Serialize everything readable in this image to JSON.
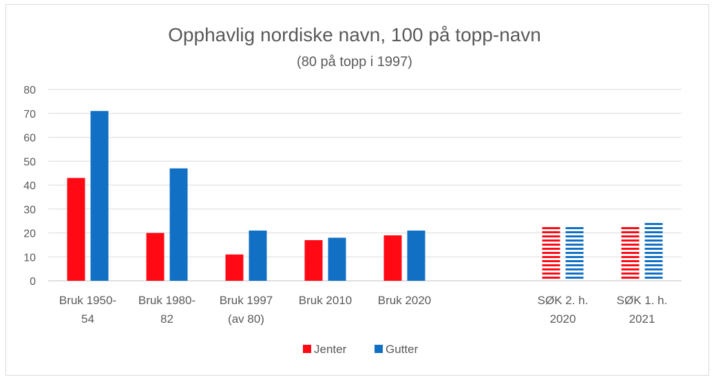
{
  "chart_data": {
    "type": "bar",
    "title": "Opphavlig nordiske navn, 100 på topp-navn",
    "subtitle": "(80 på topp i 1997)",
    "categories": [
      [
        "Bruk 1950-",
        "54"
      ],
      [
        "Bruk 1980-",
        "82"
      ],
      [
        "Bruk 1997",
        "(av 80)"
      ],
      [
        "Bruk 2010"
      ],
      [
        "Bruk 2020"
      ],
      [],
      [
        "SØK 2. h.",
        "2020"
      ],
      [
        "SØK 1. h.",
        "2021"
      ]
    ],
    "series": [
      {
        "name": "Jenter",
        "color": "#FF0A14",
        "values": [
          43,
          20,
          11,
          17,
          19,
          null,
          23,
          23
        ]
      },
      {
        "name": "Gutter",
        "color": "#1170C4",
        "values": [
          71,
          47,
          21,
          18,
          21,
          null,
          23,
          25
        ]
      }
    ],
    "striped_categories": [
      6,
      7
    ],
    "ylim": [
      0,
      80
    ],
    "yticks": [
      0,
      10,
      20,
      30,
      40,
      50,
      60,
      70,
      80
    ],
    "grid": true,
    "legend_position": "bottom",
    "xlabel": "",
    "ylabel": ""
  }
}
